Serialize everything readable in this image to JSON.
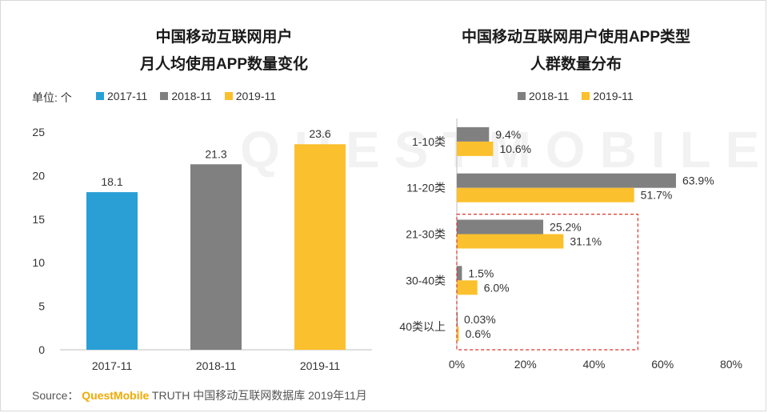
{
  "watermark": "QUESTMOBILE",
  "colors": {
    "y2017": "#2a9fd6",
    "y2018": "#808080",
    "y2019": "#fbc02d",
    "highlight": "#d9342b"
  },
  "source": {
    "prefix": "Source：",
    "brand": "QuestMobile",
    "suffix": "TRUTH 中国移动互联网数据库 2019年11月"
  },
  "chart_data": [
    {
      "type": "bar",
      "title_line1": "中国移动互联网用户",
      "title_line2": "月人均使用APP数量变化",
      "unit_label": "单位: 个",
      "categories": [
        "2017-11",
        "2018-11",
        "2019-11"
      ],
      "values": [
        18.1,
        21.3,
        23.6
      ],
      "data_labels": [
        "18.1",
        "21.3",
        "23.6"
      ],
      "legend": [
        "2017-11",
        "2018-11",
        "2019-11"
      ],
      "legend_placement": "top",
      "ylim": [
        0,
        25
      ],
      "yticks": [
        "0",
        "5",
        "10",
        "15",
        "20",
        "25"
      ],
      "grid": false
    },
    {
      "type": "bar",
      "orientation": "horizontal",
      "title_line1": "中国移动互联网用户使用APP类型",
      "title_line2": "人群数量分布",
      "categories": [
        "1-10类",
        "11-20类",
        "21-30类",
        "30-40类",
        "40类以上"
      ],
      "series": [
        {
          "name": "2018-11",
          "values": [
            9.4,
            63.9,
            25.2,
            1.5,
            0.03
          ],
          "labels": [
            "9.4%",
            "63.9%",
            "25.2%",
            "1.5%",
            "0.03%"
          ]
        },
        {
          "name": "2019-11",
          "values": [
            10.6,
            51.7,
            31.1,
            6.0,
            0.6
          ],
          "labels": [
            "10.6%",
            "51.7%",
            "31.1%",
            "6.0%",
            "0.6%"
          ]
        }
      ],
      "legend_placement": "top",
      "xlim": [
        0,
        80
      ],
      "xticks": [
        "0%",
        "20%",
        "40%",
        "60%",
        "80%"
      ],
      "highlighted_categories": [
        "21-30类",
        "30-40类",
        "40类以上"
      ],
      "grid": false
    }
  ]
}
